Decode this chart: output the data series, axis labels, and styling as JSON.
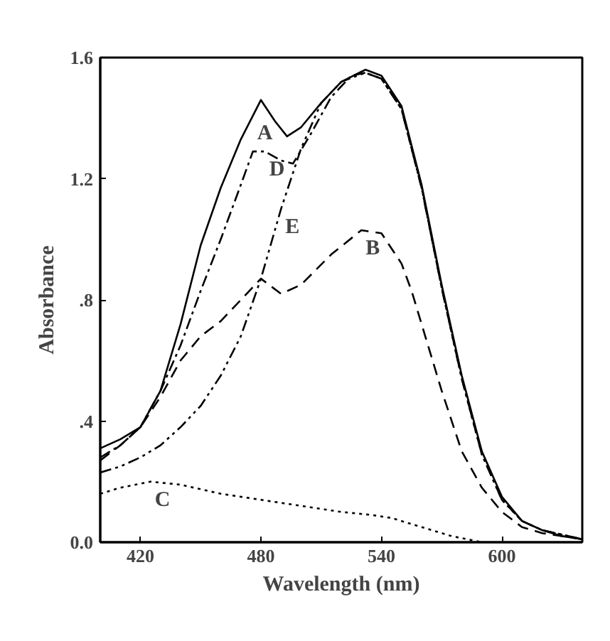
{
  "chart_data": {
    "type": "line",
    "xlabel": "Wavelength (nm)",
    "ylabel": "Absorbance",
    "xlim": [
      400,
      640
    ],
    "ylim": [
      0,
      1.6
    ],
    "xticks": [
      420,
      480,
      540,
      600
    ],
    "yticks": [
      {
        "value": 0,
        "label": "0.0"
      },
      {
        "value": 0.4,
        "label": ".4"
      },
      {
        "value": 0.8,
        "label": ".8"
      },
      1.2,
      1.6
    ],
    "series": [
      {
        "color": "#000000",
        "line_style": "solid",
        "x": [
          400,
          410,
          420,
          430,
          440,
          450,
          460,
          470,
          480,
          487,
          493,
          500,
          510,
          520,
          532,
          540,
          550,
          560,
          570,
          580,
          590,
          600,
          610,
          620,
          630,
          640
        ],
        "values": [
          0.31,
          0.34,
          0.38,
          0.5,
          0.72,
          0.98,
          1.17,
          1.33,
          1.46,
          1.39,
          1.34,
          1.37,
          1.45,
          1.52,
          1.56,
          1.54,
          1.44,
          1.18,
          0.85,
          0.55,
          0.3,
          0.15,
          0.07,
          0.04,
          0.02,
          0.01
        ]
      },
      {
        "color": "#000000",
        "line_style": "dashed",
        "x": [
          400,
          410,
          420,
          430,
          440,
          450,
          460,
          470,
          480,
          490,
          500,
          515,
          530,
          540,
          550,
          555,
          560,
          570,
          580,
          590,
          600,
          610,
          620,
          630,
          640
        ],
        "values": [
          0.27,
          0.32,
          0.38,
          0.48,
          0.6,
          0.68,
          0.73,
          0.8,
          0.87,
          0.82,
          0.85,
          0.95,
          1.03,
          1.02,
          0.92,
          0.83,
          0.72,
          0.5,
          0.3,
          0.18,
          0.1,
          0.05,
          0.03,
          0.02,
          0.01
        ]
      },
      {
        "color": "#000000",
        "line_style": "dotted",
        "x": [
          400,
          410,
          425,
          440,
          460,
          480,
          500,
          520,
          535,
          545,
          560,
          575,
          590
        ],
        "values": [
          0.16,
          0.18,
          0.2,
          0.19,
          0.16,
          0.14,
          0.12,
          0.1,
          0.09,
          0.08,
          0.05,
          0.02,
          0.0
        ]
      },
      {
        "color": "#000000",
        "line_style": "dashdot",
        "x": [
          400,
          410,
          420,
          430,
          440,
          450,
          460,
          470,
          476,
          482,
          490,
          496,
          505,
          515,
          525,
          532,
          540,
          550,
          560,
          570,
          580,
          590,
          600,
          610,
          620,
          640
        ],
        "values": [
          0.28,
          0.32,
          0.38,
          0.5,
          0.65,
          0.83,
          1.0,
          1.18,
          1.29,
          1.29,
          1.26,
          1.25,
          1.35,
          1.47,
          1.54,
          1.55,
          1.53,
          1.43,
          1.17,
          0.84,
          0.54,
          0.29,
          0.14,
          0.07,
          0.04,
          0.01
        ]
      },
      {
        "color": "#000000",
        "line_style": "dashdotdot",
        "x": [
          400,
          410,
          420,
          430,
          440,
          450,
          460,
          470,
          480,
          490,
          500,
          510,
          520,
          532,
          540,
          550,
          560,
          570,
          580,
          590,
          600,
          610,
          620,
          640
        ],
        "values": [
          0.23,
          0.25,
          0.28,
          0.32,
          0.38,
          0.45,
          0.55,
          0.68,
          0.87,
          1.1,
          1.3,
          1.45,
          1.52,
          1.55,
          1.53,
          1.43,
          1.17,
          0.84,
          0.54,
          0.29,
          0.14,
          0.07,
          0.04,
          0.01
        ]
      }
    ],
    "annotations": [
      {
        "text": "A",
        "x": 476,
        "y": 1.41
      },
      {
        "text": "D",
        "x": 482,
        "y": 1.29
      },
      {
        "text": "E",
        "x": 490,
        "y": 1.1
      },
      {
        "text": "B",
        "x": 530,
        "y": 1.03
      },
      {
        "text": "C",
        "x": 425,
        "y": 0.2
      }
    ]
  }
}
